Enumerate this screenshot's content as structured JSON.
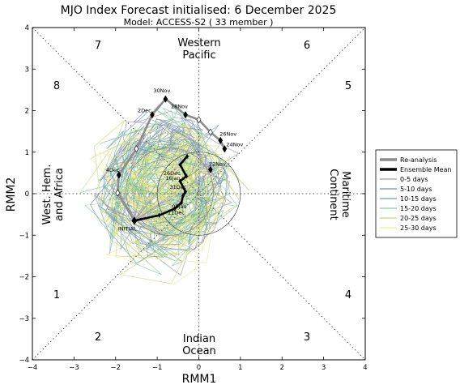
{
  "chart_data": {
    "type": "line",
    "title": "MJO Index Forecast initialised:  6  December 2025",
    "subtitle": "Model: ACCESS-S2 ( 33 member )",
    "xlabel": "RMM1",
    "ylabel": "RMM2",
    "xlim": [
      -4,
      4
    ],
    "ylim": [
      -4,
      4
    ],
    "xticks": [
      "−4",
      "−3",
      "−2",
      "−1",
      "0",
      "1",
      "2",
      "3",
      "4"
    ],
    "yticks": [
      "−4",
      "−3",
      "−2",
      "−1",
      "0",
      "1",
      "2",
      "3",
      "4"
    ],
    "grid": false,
    "legend_position": "right",
    "phases": [
      "1",
      "2",
      "3",
      "4",
      "5",
      "6",
      "7",
      "8"
    ],
    "regions": {
      "top_line1": "Western",
      "top_line2": "Pacific",
      "bottom_line1": "Indian",
      "bottom_line2": "Ocean",
      "left_line1": "West. Hem.",
      "left_line2": "and Africa",
      "right_line1": "Maritime",
      "right_line2": "Continent"
    },
    "reanalysis": {
      "name": "Re-analysis",
      "color": "#8c8c8c",
      "points": [
        {
          "x": 0.62,
          "y": 1.08,
          "label": "24Nov"
        },
        {
          "x": 0.52,
          "y": 1.28,
          "label": "26Nov"
        },
        {
          "x": 0.28,
          "y": 1.48
        },
        {
          "x": 0.0,
          "y": 1.78
        },
        {
          "x": -0.32,
          "y": 1.9,
          "label": "28Nov"
        },
        {
          "x": -0.8,
          "y": 2.28,
          "label": "30Nov"
        },
        {
          "x": -1.12,
          "y": 1.9,
          "label": "2Dec"
        },
        {
          "x": -1.5,
          "y": 1.08
        },
        {
          "x": -1.92,
          "y": 0.45,
          "label": "4Dec"
        },
        {
          "x": -1.95,
          "y": 0.02
        },
        {
          "x": -1.55,
          "y": -0.65,
          "label": "INITIAL"
        }
      ]
    },
    "reanalysis_extra": [
      {
        "x": 0.28,
        "y": 0.58,
        "label": "22Nov"
      }
    ],
    "ensemble_mean": {
      "name": "Ensemble Mean",
      "color": "#000000",
      "points": [
        {
          "x": -1.55,
          "y": -0.65
        },
        {
          "x": -0.95,
          "y": -0.52
        },
        {
          "x": -0.58,
          "y": -0.36,
          "label": "11Dec"
        },
        {
          "x": -0.42,
          "y": -0.22
        },
        {
          "x": -0.38,
          "y": -0.05,
          "label": "16Jan"
        },
        {
          "x": -0.32,
          "y": 0.05
        },
        {
          "x": -0.45,
          "y": 0.3
        },
        {
          "x": -0.3,
          "y": 0.42
        },
        {
          "x": -0.45,
          "y": 0.7,
          "label": "21Dec"
        },
        {
          "x": -0.28,
          "y": 0.9
        }
      ],
      "date_labels": [
        {
          "text": "26Dec",
          "x": -0.85,
          "y": 0.45
        },
        {
          "text": "16Jan",
          "x": -0.8,
          "y": 0.33
        },
        {
          "text": "31Dec",
          "x": -0.7,
          "y": 0.12
        },
        {
          "text": "05Jan",
          "x": -0.65,
          "y": -0.35
        },
        {
          "text": "11Dec",
          "x": -0.75,
          "y": -0.5
        }
      ]
    },
    "ranges_legend": [
      {
        "name": "0-5 days",
        "color": "#9b9bb0"
      },
      {
        "name": "5-10 days",
        "color": "#7d86b6"
      },
      {
        "name": "10-15 days",
        "color": "#6aa0b7"
      },
      {
        "name": "15-20 days",
        "color": "#83c9a0"
      },
      {
        "name": "20-25 days",
        "color": "#bfdf73"
      },
      {
        "name": "25-30 days",
        "color": "#f3e88a"
      }
    ],
    "ensemble_circle": {
      "cx": -0.7,
      "cy": 0.05,
      "r": 1.05,
      "color": "#888888"
    }
  }
}
